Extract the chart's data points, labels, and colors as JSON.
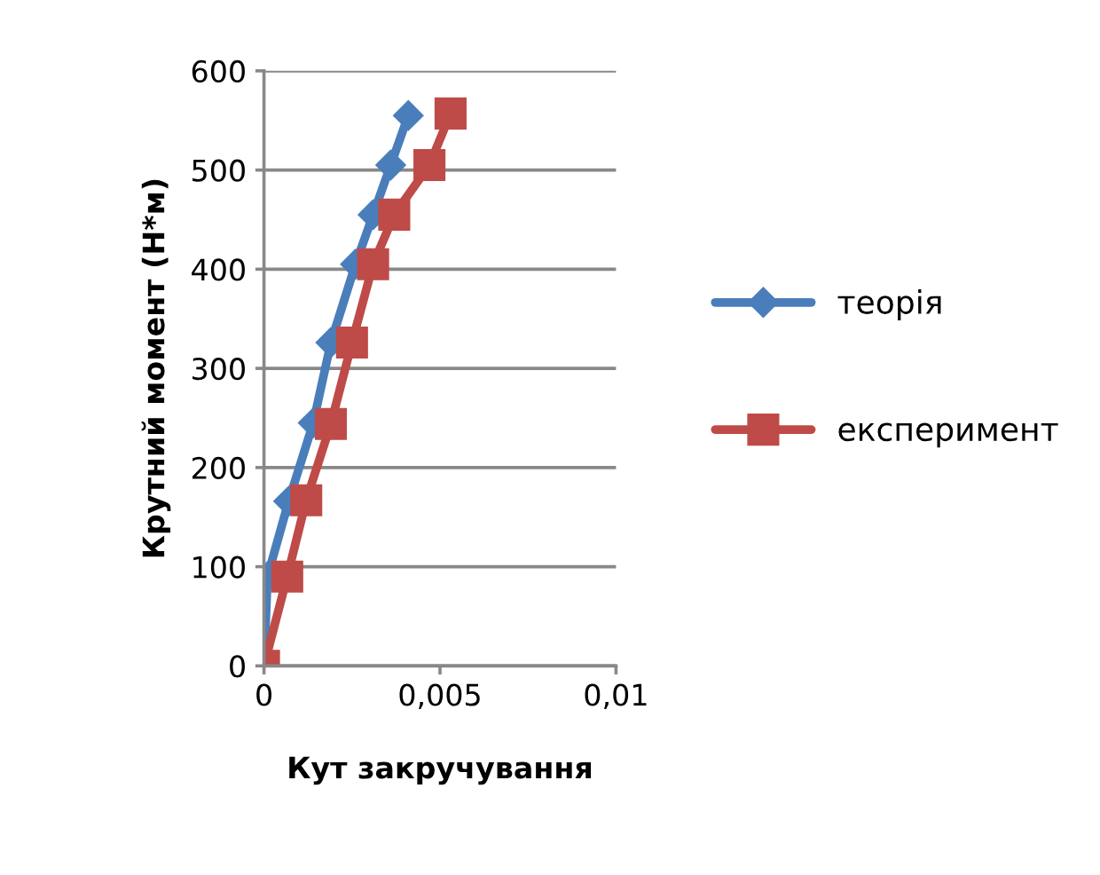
{
  "chart_data": {
    "type": "line",
    "xlabel": "Кут закручування",
    "ylabel": "Крутний момент (Н*м)",
    "xlim": [
      0,
      0.01
    ],
    "xticks": [
      {
        "value": 0,
        "label": "0"
      },
      {
        "value": 0.005,
        "label": "0,005"
      },
      {
        "value": 0.01,
        "label": "0,01"
      }
    ],
    "ylim": [
      0,
      600
    ],
    "yticks": [
      0,
      100,
      200,
      300,
      400,
      500,
      600
    ],
    "grid": "y",
    "legend": "right",
    "series": [
      {
        "name": "теорія",
        "color": "#4a7ebb",
        "marker": "diamond",
        "x": [
          0,
          0.0001,
          0.0007,
          0.0014,
          0.0019,
          0.0026,
          0.0031,
          0.0036,
          0.0041
        ],
        "values": [
          0,
          90,
          166,
          245,
          326,
          405,
          455,
          505,
          555
        ]
      },
      {
        "name": "експеримент",
        "color": "#be4b48",
        "marker": "square",
        "x": [
          0,
          0.00066,
          0.0012,
          0.0019,
          0.0025,
          0.0031,
          0.0037,
          0.0047,
          0.0053
        ],
        "values": [
          0,
          90,
          167,
          244,
          326,
          405,
          455,
          505,
          557
        ]
      }
    ]
  }
}
